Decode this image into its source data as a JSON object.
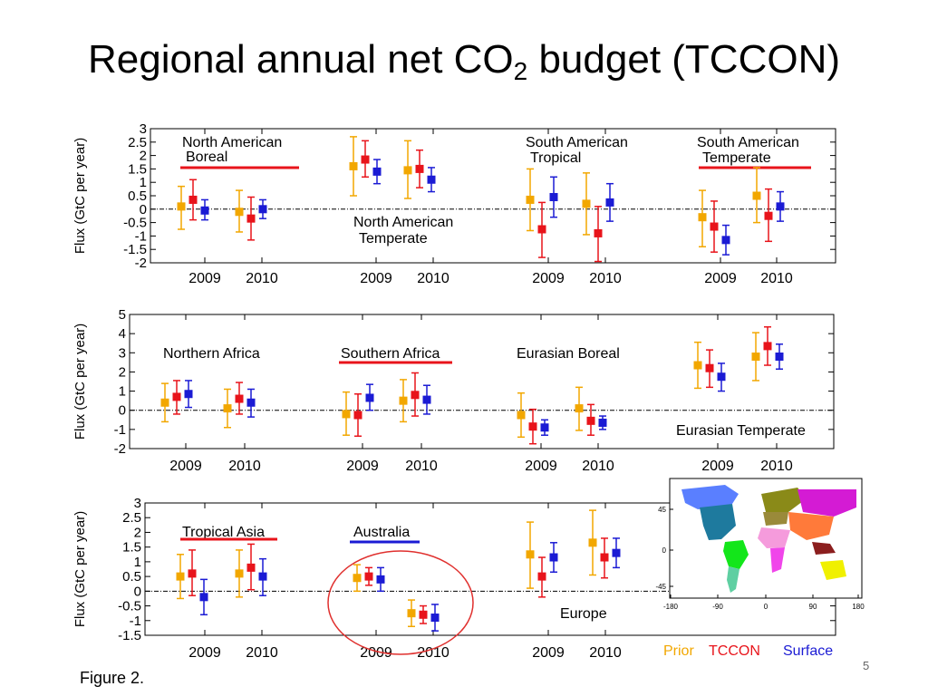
{
  "slide": {
    "title_main": "Regional annual net CO",
    "title_sub": "2",
    "title_tail": " budget (TCCON)",
    "caption": "Figure 2.",
    "page_number": "5"
  },
  "colors": {
    "prior": "#f2a700",
    "tccon": "#e8141b",
    "surface": "#1b1bd4",
    "australia_underline": "#1b1bd4",
    "highlight_circle": "#e0302e"
  },
  "chart_data": [
    {
      "type": "scatter",
      "ylabel": "Flux (GtC per year)",
      "ylim": [
        -2,
        3
      ],
      "yticks": [
        "-2",
        "-1.5",
        "-1",
        "-0.5",
        "0",
        "0.5",
        "1",
        "1.5",
        "2",
        "2.5",
        "3"
      ],
      "regions": [
        {
          "name": "North American Boreal",
          "underline": "red",
          "label_lines": [
            "North American",
            "Boreal"
          ],
          "years": [
            {
              "year": "2009",
              "prior": [
                0.1,
                -0.75,
                0.85
              ],
              "tccon": [
                0.35,
                -0.4,
                1.1
              ],
              "surface": [
                -0.05,
                -0.4,
                0.35
              ]
            },
            {
              "year": "2010",
              "prior": [
                -0.1,
                -0.85,
                0.7
              ],
              "tccon": [
                -0.35,
                -1.15,
                0.45
              ],
              "surface": [
                0.0,
                -0.35,
                0.35
              ]
            }
          ]
        },
        {
          "name": "North American Temperate",
          "underline": "",
          "label_lines": [
            "North American",
            "Temperate"
          ],
          "years": [
            {
              "year": "2009",
              "prior": [
                1.6,
                0.5,
                2.7
              ],
              "tccon": [
                1.85,
                1.2,
                2.55
              ],
              "surface": [
                1.4,
                0.95,
                1.85
              ]
            },
            {
              "year": "2010",
              "prior": [
                1.45,
                0.4,
                2.55
              ],
              "tccon": [
                1.5,
                0.8,
                2.2
              ],
              "surface": [
                1.1,
                0.65,
                1.55
              ]
            }
          ]
        },
        {
          "name": "South American Tropical",
          "underline": "",
          "label_lines": [
            "South American",
            "Tropical"
          ],
          "years": [
            {
              "year": "2009",
              "prior": [
                0.35,
                -0.8,
                1.5
              ],
              "tccon": [
                -0.75,
                -1.8,
                0.25
              ],
              "surface": [
                0.45,
                -0.3,
                1.2
              ]
            },
            {
              "year": "2010",
              "prior": [
                0.2,
                -0.95,
                1.35
              ],
              "tccon": [
                -0.9,
                -1.95,
                0.1
              ],
              "surface": [
                0.25,
                -0.45,
                0.95
              ]
            }
          ]
        },
        {
          "name": "South American Temperate",
          "underline": "red",
          "label_lines": [
            "South American",
            "Temperate"
          ],
          "years": [
            {
              "year": "2009",
              "prior": [
                -0.3,
                -1.4,
                0.7
              ],
              "tccon": [
                -0.65,
                -1.6,
                0.3
              ],
              "surface": [
                -1.15,
                -1.7,
                -0.6
              ]
            },
            {
              "year": "2010",
              "prior": [
                0.5,
                -0.5,
                1.55
              ],
              "tccon": [
                -0.25,
                -1.2,
                0.75
              ],
              "surface": [
                0.1,
                -0.45,
                0.65
              ]
            }
          ]
        }
      ],
      "x_tick_labels": [
        "2009",
        "2010",
        "2009",
        "2010",
        "2009",
        "2010",
        "2009",
        "2010"
      ]
    },
    {
      "type": "scatter",
      "ylabel": "Flux (GtC per year)",
      "ylim": [
        -2,
        5
      ],
      "yticks": [
        "-2",
        "-1",
        "0",
        "1",
        "2",
        "3",
        "4",
        "5"
      ],
      "regions": [
        {
          "name": "Northern Africa",
          "underline": "",
          "label_lines": [
            "Northern Africa"
          ],
          "years": [
            {
              "year": "2009",
              "prior": [
                0.4,
                -0.6,
                1.4
              ],
              "tccon": [
                0.7,
                -0.2,
                1.55
              ],
              "surface": [
                0.85,
                0.15,
                1.55
              ]
            },
            {
              "year": "2010",
              "prior": [
                0.1,
                -0.9,
                1.1
              ],
              "tccon": [
                0.6,
                -0.2,
                1.45
              ],
              "surface": [
                0.4,
                -0.35,
                1.1
              ]
            }
          ]
        },
        {
          "name": "Southern Africa",
          "underline": "red",
          "label_lines": [
            "Southern Africa"
          ],
          "years": [
            {
              "year": "2009",
              "prior": [
                -0.2,
                -1.3,
                0.95
              ],
              "tccon": [
                -0.25,
                -1.35,
                0.85
              ],
              "surface": [
                0.65,
                0.0,
                1.35
              ]
            },
            {
              "year": "2010",
              "prior": [
                0.5,
                -0.6,
                1.6
              ],
              "tccon": [
                0.8,
                -0.3,
                1.95
              ],
              "surface": [
                0.55,
                -0.2,
                1.3
              ]
            }
          ]
        },
        {
          "name": "Eurasian Boreal",
          "underline": "",
          "label_lines": [
            "Eurasian Boreal"
          ],
          "years": [
            {
              "year": "2009",
              "prior": [
                -0.25,
                -1.4,
                0.9
              ],
              "tccon": [
                -0.85,
                -1.75,
                0.05
              ],
              "surface": [
                -0.9,
                -1.3,
                -0.5
              ]
            },
            {
              "year": "2010",
              "prior": [
                0.1,
                -1.05,
                1.2
              ],
              "tccon": [
                -0.55,
                -1.3,
                0.3
              ],
              "surface": [
                -0.65,
                -1.0,
                -0.3
              ]
            }
          ]
        },
        {
          "name": "Eurasian Temperate",
          "underline": "",
          "label_lines": [
            "Eurasian Temperate"
          ],
          "years": [
            {
              "year": "2009",
              "prior": [
                2.35,
                1.15,
                3.55
              ],
              "tccon": [
                2.2,
                1.2,
                3.15
              ],
              "surface": [
                1.75,
                1.0,
                2.45
              ]
            },
            {
              "year": "2010",
              "prior": [
                2.8,
                1.55,
                4.05
              ],
              "tccon": [
                3.35,
                2.35,
                4.35
              ],
              "surface": [
                2.8,
                2.15,
                3.45
              ]
            }
          ]
        }
      ],
      "x_tick_labels": [
        "2009",
        "2010",
        "2009",
        "2010",
        "2009",
        "2010",
        "2009",
        "2010"
      ]
    },
    {
      "type": "scatter",
      "ylabel": "Flux (GtC per year)",
      "ylim": [
        -1.5,
        3
      ],
      "yticks": [
        "-1.5",
        "-1",
        "-0.5",
        "0",
        "0.5",
        "1",
        "1.5",
        "2",
        "2.5",
        "3"
      ],
      "regions": [
        {
          "name": "Tropical Asia",
          "underline": "red",
          "label_lines": [
            "Tropical Asia"
          ],
          "years": [
            {
              "year": "2009",
              "prior": [
                0.5,
                -0.25,
                1.25
              ],
              "tccon": [
                0.6,
                -0.15,
                1.4
              ],
              "surface": [
                -0.2,
                -0.8,
                0.4
              ]
            },
            {
              "year": "2010",
              "prior": [
                0.6,
                -0.2,
                1.4
              ],
              "tccon": [
                0.8,
                0.05,
                1.6
              ],
              "surface": [
                0.5,
                -0.15,
                1.1
              ]
            }
          ]
        },
        {
          "name": "Australia",
          "underline": "blue",
          "label_lines": [
            "Australia"
          ],
          "years": [
            {
              "year": "2009",
              "prior": [
                0.45,
                0.0,
                0.9
              ],
              "tccon": [
                0.5,
                0.2,
                0.8
              ],
              "surface": [
                0.4,
                0.0,
                0.8
              ]
            },
            {
              "year": "2010",
              "prior": [
                -0.75,
                -1.2,
                -0.3
              ],
              "tccon": [
                -0.8,
                -1.1,
                -0.5
              ],
              "surface": [
                -0.9,
                -1.35,
                -0.45
              ]
            }
          ]
        },
        {
          "name": "Europe",
          "underline": "",
          "label_lines": [
            "Europe"
          ],
          "years": [
            {
              "year": "2009",
              "prior": [
                1.25,
                0.1,
                2.35
              ],
              "tccon": [
                0.5,
                -0.2,
                1.15
              ],
              "surface": [
                1.15,
                0.65,
                1.65
              ]
            },
            {
              "year": "2010",
              "prior": [
                1.65,
                0.55,
                2.75
              ],
              "tccon": [
                1.15,
                0.45,
                1.8
              ],
              "surface": [
                1.3,
                0.8,
                1.8
              ]
            }
          ]
        }
      ],
      "x_tick_labels": [
        "2009",
        "2010",
        "2009",
        "2010",
        "2009",
        "2010"
      ]
    }
  ],
  "legend": [
    "Prior",
    "TCCON",
    "Surface"
  ],
  "map": {
    "y_ticks": [
      "45",
      "0",
      "-45"
    ],
    "x_ticks": [
      "-180",
      "-90",
      "0",
      "90",
      "180"
    ]
  }
}
